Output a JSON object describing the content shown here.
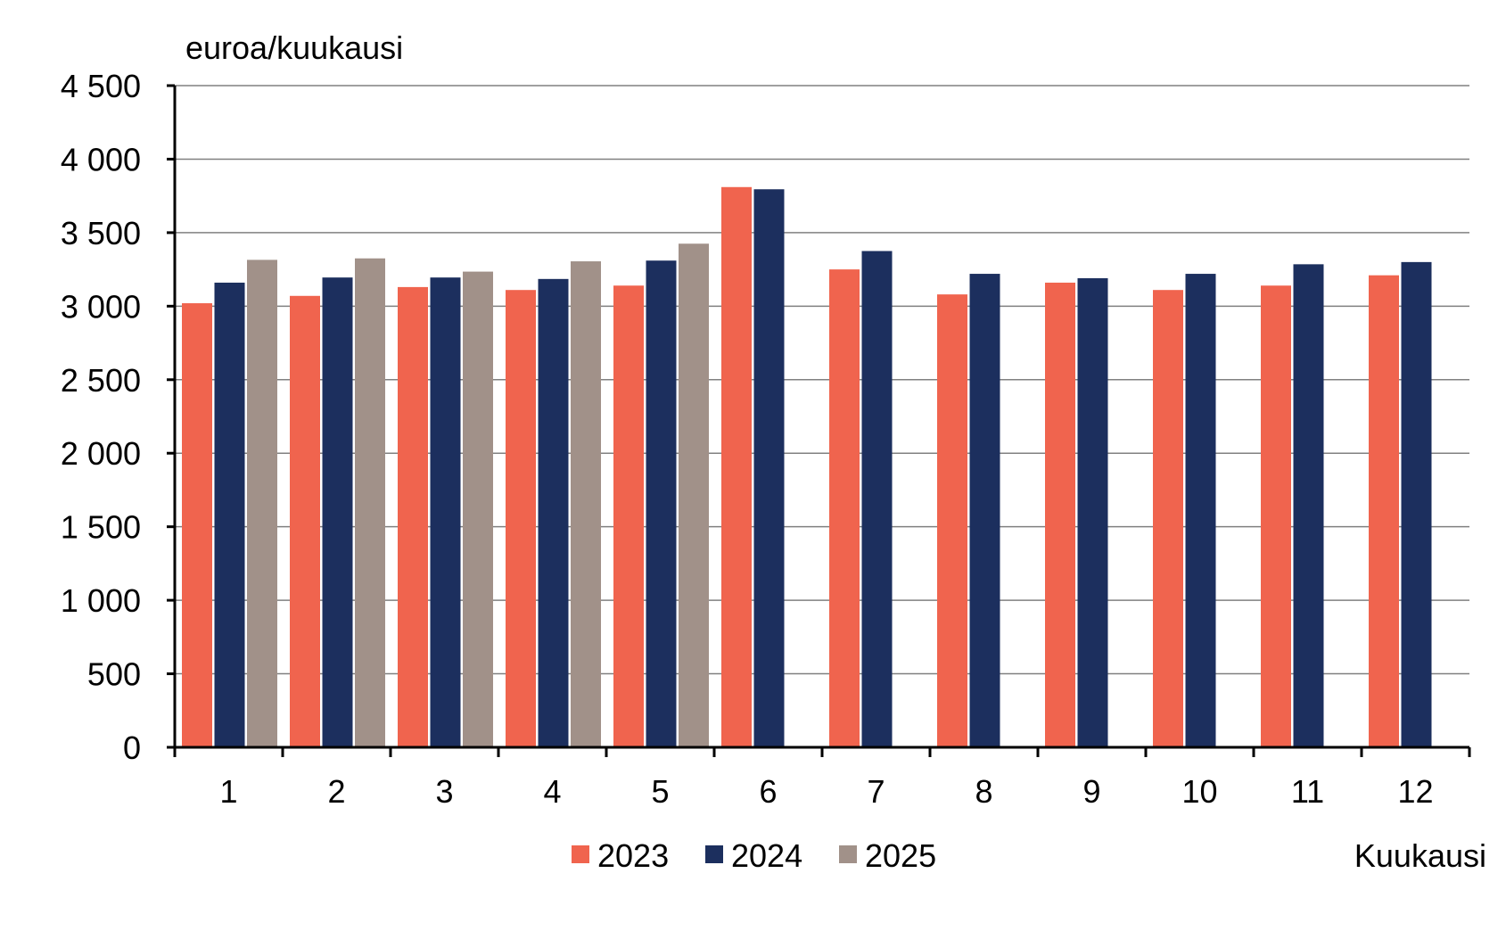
{
  "chart_data": {
    "type": "bar",
    "ylabel": "euroa/kuukausi",
    "xlabel": "Kuukausi",
    "ylim": [
      0,
      4500
    ],
    "ytick_values": [
      0,
      500,
      1000,
      1500,
      2000,
      2500,
      3000,
      3500,
      4000,
      4500
    ],
    "ytick_labels": [
      "0",
      "500",
      "1 000",
      "1 500",
      "2 000",
      "2 500",
      "3 000",
      "3 500",
      "4 000",
      "4 500"
    ],
    "categories": [
      "1",
      "2",
      "3",
      "4",
      "5",
      "6",
      "7",
      "8",
      "9",
      "10",
      "11",
      "12"
    ],
    "grid": true,
    "legend_position": "bottom-center",
    "series": [
      {
        "name": "2023",
        "color": "#F0644E",
        "values": [
          3020,
          3070,
          3130,
          3110,
          3140,
          3810,
          3250,
          3080,
          3160,
          3110,
          3140,
          3210
        ]
      },
      {
        "name": "2024",
        "color": "#1C2F5E",
        "values": [
          3160,
          3195,
          3195,
          3185,
          3310,
          3795,
          3375,
          3220,
          3190,
          3220,
          3285,
          3300
        ]
      },
      {
        "name": "2025",
        "color": "#A19189",
        "values": [
          3315,
          3325,
          3235,
          3305,
          3425,
          null,
          null,
          null,
          null,
          null,
          null,
          null
        ]
      }
    ]
  }
}
